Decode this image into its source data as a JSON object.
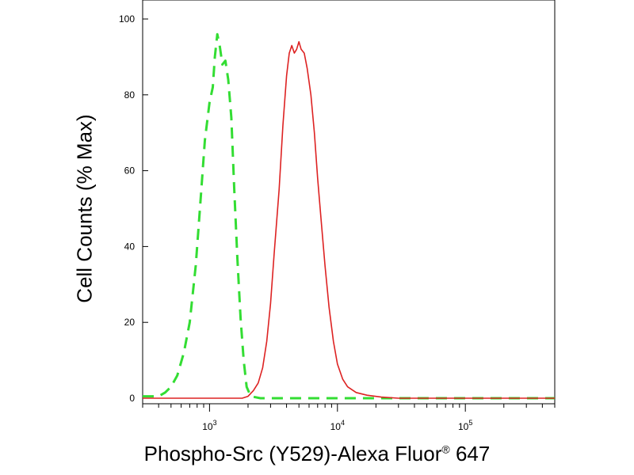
{
  "chart_data": {
    "type": "line",
    "xlabel": {
      "main": "Phospho-Src (Y529)-Alexa Fluor",
      "registered": "®",
      "suffix": " 647"
    },
    "ylabel": "Cell Counts (% Max)",
    "xscale": "log",
    "xlim": [
      300,
      500000
    ],
    "ylim": [
      0,
      100
    ],
    "x_ticks": [
      {
        "base": "10",
        "exp": "3",
        "value": 1000
      },
      {
        "base": "10",
        "exp": "4",
        "value": 10000
      },
      {
        "base": "10",
        "exp": "5",
        "value": 100000
      }
    ],
    "y_ticks": [
      "0",
      "20",
      "40",
      "60",
      "80",
      "100"
    ],
    "grid": false,
    "legend": "none",
    "series": [
      {
        "color": "#33dd33",
        "style": "dashed",
        "points": [
          [
            300,
            0.5
          ],
          [
            350,
            0.5
          ],
          [
            400,
            0.5
          ],
          [
            450,
            1.5
          ],
          [
            500,
            3
          ],
          [
            560,
            6
          ],
          [
            630,
            12
          ],
          [
            700,
            20
          ],
          [
            780,
            35
          ],
          [
            850,
            52
          ],
          [
            920,
            68
          ],
          [
            1000,
            78
          ],
          [
            1060,
            82
          ],
          [
            1100,
            90
          ],
          [
            1150,
            96
          ],
          [
            1200,
            93
          ],
          [
            1260,
            88
          ],
          [
            1330,
            89
          ],
          [
            1400,
            84
          ],
          [
            1480,
            74
          ],
          [
            1560,
            55
          ],
          [
            1650,
            37
          ],
          [
            1750,
            21
          ],
          [
            1850,
            10
          ],
          [
            1950,
            3
          ],
          [
            2100,
            0.5
          ],
          [
            2500,
            0
          ],
          [
            5000,
            0
          ],
          [
            20000,
            0
          ],
          [
            100000,
            0
          ],
          [
            500000,
            0
          ]
        ]
      },
      {
        "color": "#dd2222",
        "style": "solid",
        "points": [
          [
            300,
            0
          ],
          [
            1000,
            0
          ],
          [
            1800,
            0
          ],
          [
            2000,
            0.5
          ],
          [
            2200,
            2
          ],
          [
            2400,
            4
          ],
          [
            2600,
            8
          ],
          [
            2800,
            15
          ],
          [
            3000,
            25
          ],
          [
            3200,
            38
          ],
          [
            3500,
            55
          ],
          [
            3750,
            72
          ],
          [
            4000,
            85
          ],
          [
            4200,
            91
          ],
          [
            4400,
            93
          ],
          [
            4600,
            91
          ],
          [
            4800,
            92
          ],
          [
            5000,
            94
          ],
          [
            5200,
            92
          ],
          [
            5500,
            91
          ],
          [
            5800,
            87
          ],
          [
            6200,
            80
          ],
          [
            6600,
            70
          ],
          [
            7000,
            58
          ],
          [
            7500,
            46
          ],
          [
            8000,
            35
          ],
          [
            8600,
            24
          ],
          [
            9300,
            15
          ],
          [
            10000,
            9
          ],
          [
            11000,
            5
          ],
          [
            12000,
            3
          ],
          [
            14000,
            1.5
          ],
          [
            17000,
            0.8
          ],
          [
            22000,
            0.3
          ],
          [
            30000,
            0
          ],
          [
            500000,
            0
          ]
        ]
      }
    ]
  }
}
